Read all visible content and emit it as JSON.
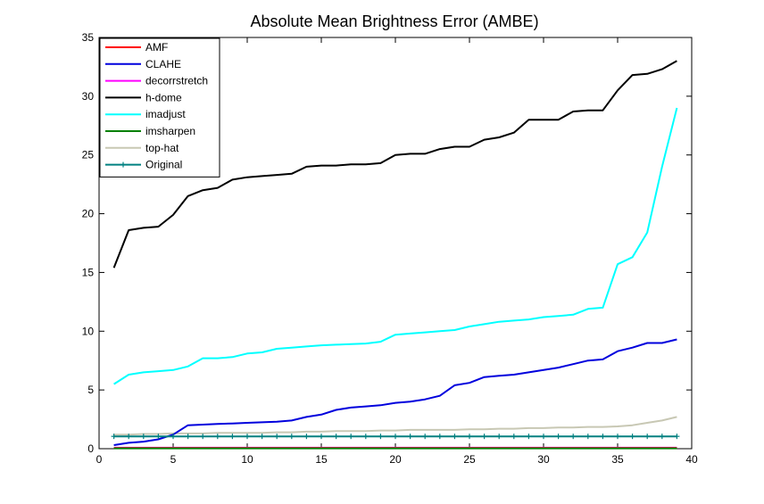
{
  "chart_data": {
    "type": "line",
    "title": "Absolute Mean Brightness Error (AMBE)",
    "xlabel": "",
    "ylabel": "",
    "xlim": [
      0,
      40
    ],
    "ylim": [
      0,
      35
    ],
    "xticks": [
      0,
      5,
      10,
      15,
      20,
      25,
      30,
      35,
      40
    ],
    "yticks": [
      0,
      5,
      10,
      15,
      20,
      25,
      30,
      35
    ],
    "grid": false,
    "legend_position": "top-left",
    "x": [
      1,
      2,
      3,
      4,
      5,
      6,
      7,
      8,
      9,
      10,
      11,
      12,
      13,
      14,
      15,
      16,
      17,
      18,
      19,
      20,
      21,
      22,
      23,
      24,
      25,
      26,
      27,
      28,
      29,
      30,
      31,
      32,
      33,
      34,
      35,
      36,
      37,
      38,
      39
    ],
    "series": [
      {
        "name": "AMF",
        "color": "#ff0000",
        "marker": "none",
        "values": [
          0.05,
          0.05,
          0.05,
          0.05,
          0.05,
          0.05,
          0.05,
          0.05,
          0.05,
          0.05,
          0.05,
          0.05,
          0.05,
          0.05,
          0.05,
          0.05,
          0.05,
          0.05,
          0.05,
          0.05,
          0.05,
          0.05,
          0.05,
          0.05,
          0.05,
          0.05,
          0.05,
          0.05,
          0.05,
          0.05,
          0.05,
          0.05,
          0.05,
          0.05,
          0.05,
          0.05,
          0.05,
          0.05,
          0.05
        ]
      },
      {
        "name": "CLAHE",
        "color": "#0000dd",
        "marker": "none",
        "values": [
          0.3,
          0.5,
          0.6,
          0.8,
          1.2,
          2.0,
          2.05,
          2.1,
          2.15,
          2.2,
          2.25,
          2.3,
          2.4,
          2.7,
          2.9,
          3.3,
          3.5,
          3.6,
          3.7,
          3.9,
          4.0,
          4.2,
          4.5,
          5.4,
          5.6,
          6.1,
          6.2,
          6.3,
          6.5,
          6.7,
          6.9,
          7.2,
          7.5,
          7.6,
          8.3,
          8.6,
          9.0,
          9.0,
          9.3
        ]
      },
      {
        "name": "decorrstretch",
        "color": "#ff00ff",
        "marker": "none",
        "values": [
          0.08,
          0.08,
          0.08,
          0.08,
          0.08,
          0.08,
          0.08,
          0.08,
          0.08,
          0.08,
          0.08,
          0.08,
          0.08,
          0.08,
          0.08,
          0.08,
          0.08,
          0.08,
          0.08,
          0.08,
          0.08,
          0.08,
          0.08,
          0.08,
          0.08,
          0.08,
          0.08,
          0.08,
          0.08,
          0.08,
          0.08,
          0.08,
          0.08,
          0.08,
          0.08,
          0.08,
          0.08,
          0.08,
          0.08
        ]
      },
      {
        "name": "h-dome",
        "color": "#000000",
        "marker": "none",
        "values": [
          15.4,
          18.6,
          18.8,
          18.9,
          19.9,
          21.5,
          22.0,
          22.2,
          22.9,
          23.1,
          23.2,
          23.3,
          23.4,
          24.0,
          24.1,
          24.1,
          24.2,
          24.2,
          24.3,
          25.0,
          25.1,
          25.1,
          25.5,
          25.7,
          25.7,
          26.3,
          26.5,
          26.9,
          28.0,
          28.0,
          28.0,
          28.7,
          28.8,
          28.8,
          30.5,
          31.8,
          31.9,
          32.3,
          33.0
        ]
      },
      {
        "name": "imadjust",
        "color": "#00ffff",
        "marker": "none",
        "values": [
          5.5,
          6.3,
          6.5,
          6.6,
          6.7,
          7.0,
          7.7,
          7.7,
          7.8,
          8.1,
          8.2,
          8.5,
          8.6,
          8.7,
          8.8,
          8.85,
          8.9,
          8.95,
          9.1,
          9.7,
          9.8,
          9.9,
          10.0,
          10.1,
          10.4,
          10.6,
          10.8,
          10.9,
          11.0,
          11.2,
          11.3,
          11.4,
          11.9,
          12.0,
          15.7,
          16.3,
          18.4,
          24.0,
          29.0
        ]
      },
      {
        "name": "imsharpen",
        "color": "#008000",
        "marker": "none",
        "values": [
          0.03,
          0.03,
          0.03,
          0.03,
          0.03,
          0.03,
          0.03,
          0.03,
          0.03,
          0.03,
          0.03,
          0.03,
          0.03,
          0.03,
          0.03,
          0.03,
          0.03,
          0.03,
          0.03,
          0.03,
          0.03,
          0.03,
          0.03,
          0.03,
          0.03,
          0.03,
          0.03,
          0.03,
          0.03,
          0.03,
          0.03,
          0.03,
          0.03,
          0.03,
          0.03,
          0.03,
          0.03,
          0.03,
          0.03
        ]
      },
      {
        "name": "top-hat",
        "color": "#c8c8b4",
        "marker": "none",
        "values": [
          1.2,
          1.2,
          1.25,
          1.25,
          1.3,
          1.3,
          1.3,
          1.35,
          1.35,
          1.35,
          1.35,
          1.4,
          1.4,
          1.45,
          1.45,
          1.5,
          1.5,
          1.5,
          1.55,
          1.55,
          1.6,
          1.6,
          1.6,
          1.6,
          1.65,
          1.65,
          1.7,
          1.7,
          1.75,
          1.75,
          1.8,
          1.8,
          1.85,
          1.85,
          1.9,
          2.0,
          2.2,
          2.4,
          2.7
        ]
      },
      {
        "name": "Original",
        "color": "#008080",
        "marker": "plus",
        "values": [
          1.05,
          1.05,
          1.05,
          1.05,
          1.05,
          1.05,
          1.05,
          1.05,
          1.05,
          1.05,
          1.05,
          1.05,
          1.05,
          1.05,
          1.05,
          1.05,
          1.05,
          1.05,
          1.05,
          1.05,
          1.05,
          1.05,
          1.05,
          1.05,
          1.05,
          1.05,
          1.05,
          1.05,
          1.05,
          1.05,
          1.05,
          1.05,
          1.05,
          1.05,
          1.05,
          1.05,
          1.05,
          1.05,
          1.05
        ]
      }
    ]
  }
}
